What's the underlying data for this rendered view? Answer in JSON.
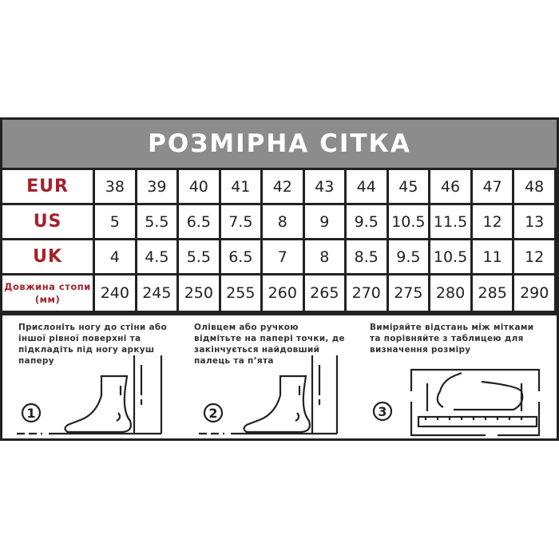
{
  "title": "РОЗМІРНА СІТКА",
  "rows": [
    {
      "label": "EUR",
      "values": [
        "38",
        "39",
        "40",
        "41",
        "42",
        "43",
        "44",
        "45",
        "46",
        "47",
        "48"
      ]
    },
    {
      "label": "US",
      "values": [
        "5",
        "5.5",
        "6.5",
        "7.5",
        "8",
        "9",
        "9.5",
        "10.5",
        "11.5",
        "12",
        "13"
      ]
    },
    {
      "label": "UK",
      "values": [
        "4",
        "4.5",
        "5.5",
        "6.5",
        "7",
        "8",
        "8.5",
        "9.5",
        "10.5",
        "11",
        "12"
      ]
    },
    {
      "label": "Довжина стопи (мм)",
      "values": [
        "240",
        "245",
        "250",
        "255",
        "260",
        "265",
        "270",
        "275",
        "280",
        "285",
        "290"
      ]
    }
  ],
  "steps": [
    {
      "number": "1",
      "text": "Прислоніть ногу до стіни або іншої рівної поверхні та підкладіть під ногу аркуш паперу"
    },
    {
      "number": "2",
      "text": "Олівцем або ручкою відмітьте на папері точки, де закінчується найдовший палець та п’ята"
    },
    {
      "number": "3",
      "text": "Виміряйте відстань між мітками та порівняйте з таблицею для визначення розміру"
    }
  ],
  "colors": {
    "header_bg": "#8c8c8c",
    "label_red": "#a3222b",
    "grid": "#222222"
  }
}
